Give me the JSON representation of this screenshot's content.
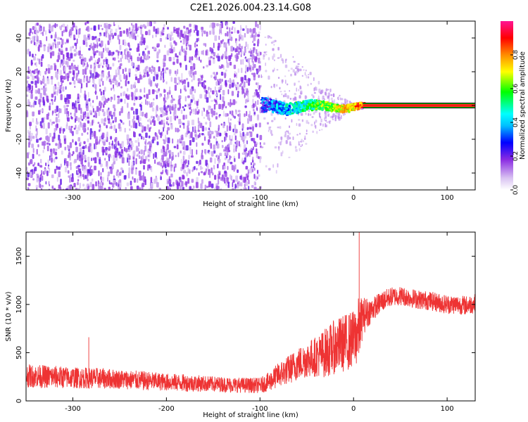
{
  "title": "C2E1.2026.004.23.14.G08",
  "chart_data": [
    {
      "type": "heatmap",
      "xlabel": "Height of straight line (km)",
      "ylabel": "Frequency (Hz)",
      "xlim": [
        -350,
        130
      ],
      "ylim": [
        -50,
        50
      ],
      "xticks": [
        -300,
        -200,
        -100,
        0,
        100
      ],
      "yticks": [
        -40,
        -20,
        0,
        20,
        40
      ],
      "grid": false,
      "colorbar": {
        "label": "Normalized spectral amplitude",
        "range": [
          0,
          1
        ],
        "ticks": [
          0.0,
          0.2,
          0.4,
          0.6,
          0.8
        ],
        "colors": [
          "#ffffff",
          "#d9c3f2",
          "#8a2be2",
          "#0000ff",
          "#00ffff",
          "#00ff00",
          "#ffff00",
          "#ff8c00",
          "#ff0000",
          "#ff1493"
        ]
      },
      "regions": [
        {
          "x_range": [
            -350,
            -100
          ],
          "freq_range": [
            -50,
            50
          ],
          "amplitude": "low (~0.1-0.3), scattered noise"
        },
        {
          "x_range": [
            -100,
            10
          ],
          "freq_center": 0,
          "amplitude": "rising (~0.3-0.6), spreading about 0 Hz"
        },
        {
          "x_range": [
            10,
            130
          ],
          "freq_center": 0,
          "amplitude": "~0.95, narrow line at 0 Hz"
        }
      ]
    },
    {
      "type": "line",
      "xlabel": "Height of straight line (km)",
      "ylabel": "SNR (10 * v/v)",
      "xlim": [
        -350,
        130
      ],
      "ylim": [
        0,
        1750
      ],
      "xticks": [
        -300,
        -200,
        -100,
        0,
        100
      ],
      "yticks": [
        0,
        500,
        1000,
        1500
      ],
      "grid": false,
      "series": [
        {
          "color": "#ee3333",
          "x": [
            -350,
            -325,
            -300,
            -275,
            -250,
            -225,
            -200,
            -175,
            -150,
            -125,
            -100,
            -90,
            -80,
            -70,
            -60,
            -50,
            -40,
            -30,
            -20,
            -10,
            0,
            5,
            10,
            20,
            30,
            40,
            50,
            60,
            70,
            80,
            90,
            100,
            110,
            120,
            130
          ],
          "y": [
            260,
            250,
            240,
            235,
            225,
            210,
            195,
            185,
            175,
            165,
            160,
            200,
            270,
            320,
            380,
            430,
            460,
            500,
            560,
            600,
            640,
            720,
            880,
            950,
            1030,
            1080,
            1090,
            1070,
            1050,
            1040,
            1020,
            1000,
            1000,
            990,
            1010
          ],
          "spread": [
            120,
            120,
            110,
            110,
            100,
            100,
            90,
            90,
            80,
            80,
            80,
            100,
            130,
            150,
            170,
            190,
            210,
            260,
            280,
            300,
            300,
            350,
            200,
            120,
            110,
            100,
            100,
            100,
            100,
            100,
            100,
            100,
            100,
            100,
            100
          ]
        }
      ],
      "annotations": [
        {
          "x": -283,
          "y": 660,
          "text": ""
        },
        {
          "x": 6,
          "y": 1750,
          "text": ""
        }
      ]
    }
  ]
}
